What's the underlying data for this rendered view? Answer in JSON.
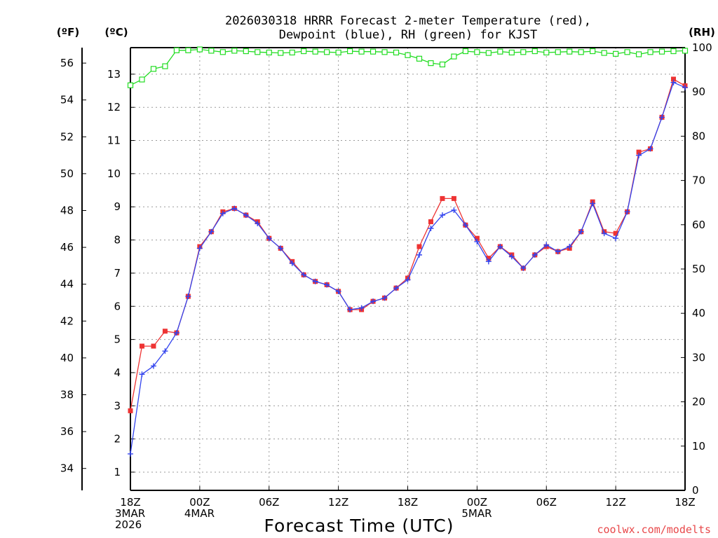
{
  "chart_data": {
    "type": "line",
    "title_line1": "2026030318 HRRR Forecast 2-meter Temperature (red),",
    "title_line2": "Dewpoint (blue), RH (green) for KJST",
    "xlabel": "Forecast Time (UTC)",
    "left_outer_unit": "(ºF)",
    "left_inner_unit": "(ºC)",
    "right_unit": "(RH)",
    "credit": "coolwx.com/modelts",
    "credit_color": "#e8484a",
    "x_range": [
      0,
      48
    ],
    "x_ticks": [
      {
        "x": 0,
        "lines": [
          "18Z",
          "3MAR",
          "2026"
        ]
      },
      {
        "x": 6,
        "lines": [
          "00Z",
          "4MAR"
        ]
      },
      {
        "x": 12,
        "lines": [
          "06Z"
        ]
      },
      {
        "x": 18,
        "lines": [
          "12Z"
        ]
      },
      {
        "x": 24,
        "lines": [
          "18Z"
        ]
      },
      {
        "x": 30,
        "lines": [
          "00Z",
          "5MAR"
        ]
      },
      {
        "x": 36,
        "lines": [
          "06Z"
        ]
      },
      {
        "x": 42,
        "lines": [
          "12Z"
        ]
      },
      {
        "x": 48,
        "lines": [
          "18Z"
        ]
      }
    ],
    "celsius_axis": {
      "range": [
        0.45,
        13.8
      ],
      "ticks": [
        1,
        2,
        3,
        4,
        5,
        6,
        7,
        8,
        9,
        10,
        11,
        12,
        13
      ]
    },
    "fahrenheit_axis": {
      "ticks": [
        34,
        36,
        38,
        40,
        42,
        44,
        46,
        48,
        50,
        52,
        54,
        56
      ]
    },
    "rh_axis": {
      "range": [
        0,
        100
      ],
      "ticks": [
        0,
        10,
        20,
        30,
        40,
        50,
        60,
        70,
        80,
        90,
        100
      ]
    },
    "grid": true,
    "series": [
      {
        "name": "Temperature",
        "axis": "celsius",
        "color": "#ee3333",
        "marker": "filled-square",
        "values": [
          2.85,
          4.8,
          4.8,
          5.25,
          5.2,
          6.3,
          7.8,
          8.25,
          8.85,
          8.95,
          8.75,
          8.55,
          8.05,
          7.75,
          7.35,
          6.95,
          6.75,
          6.65,
          6.45,
          5.9,
          5.9,
          6.15,
          6.25,
          6.55,
          6.85,
          7.8,
          8.55,
          9.25,
          9.25,
          8.45,
          8.05,
          7.45,
          7.8,
          7.55,
          7.15,
          7.55,
          7.8,
          7.65,
          7.75,
          8.25,
          9.15,
          8.25,
          8.2,
          8.85,
          10.65,
          10.75,
          11.7,
          12.85,
          12.65
        ]
      },
      {
        "name": "Dewpoint",
        "axis": "celsius",
        "color": "#3344ee",
        "marker": "plus",
        "values": [
          1.55,
          3.95,
          4.2,
          4.65,
          5.2,
          6.3,
          7.75,
          8.25,
          8.8,
          8.95,
          8.75,
          8.5,
          8.05,
          7.75,
          7.3,
          6.95,
          6.75,
          6.65,
          6.45,
          5.9,
          5.95,
          6.15,
          6.25,
          6.55,
          6.8,
          7.55,
          8.35,
          8.75,
          8.9,
          8.45,
          7.95,
          7.35,
          7.8,
          7.5,
          7.15,
          7.55,
          7.85,
          7.65,
          7.8,
          8.25,
          9.1,
          8.2,
          8.05,
          8.85,
          10.55,
          10.75,
          11.7,
          12.75,
          12.6
        ]
      },
      {
        "name": "RH",
        "axis": "rh",
        "color": "#22dd22",
        "marker": "open-square",
        "values": [
          91.5,
          92.8,
          95.2,
          95.8,
          99.4,
          99.4,
          99.6,
          99.3,
          99.0,
          99.3,
          99.2,
          99.0,
          98.9,
          98.8,
          98.9,
          99.2,
          99.1,
          99.0,
          98.9,
          99.2,
          99.1,
          99.1,
          99.0,
          98.9,
          98.3,
          97.5,
          96.5,
          96.2,
          98.0,
          99.2,
          99.0,
          98.8,
          99.1,
          98.9,
          99.0,
          99.2,
          98.9,
          99.0,
          99.1,
          99.0,
          99.2,
          98.8,
          98.6,
          99.0,
          98.5,
          99.0,
          99.1,
          99.2,
          99.3
        ]
      }
    ]
  }
}
